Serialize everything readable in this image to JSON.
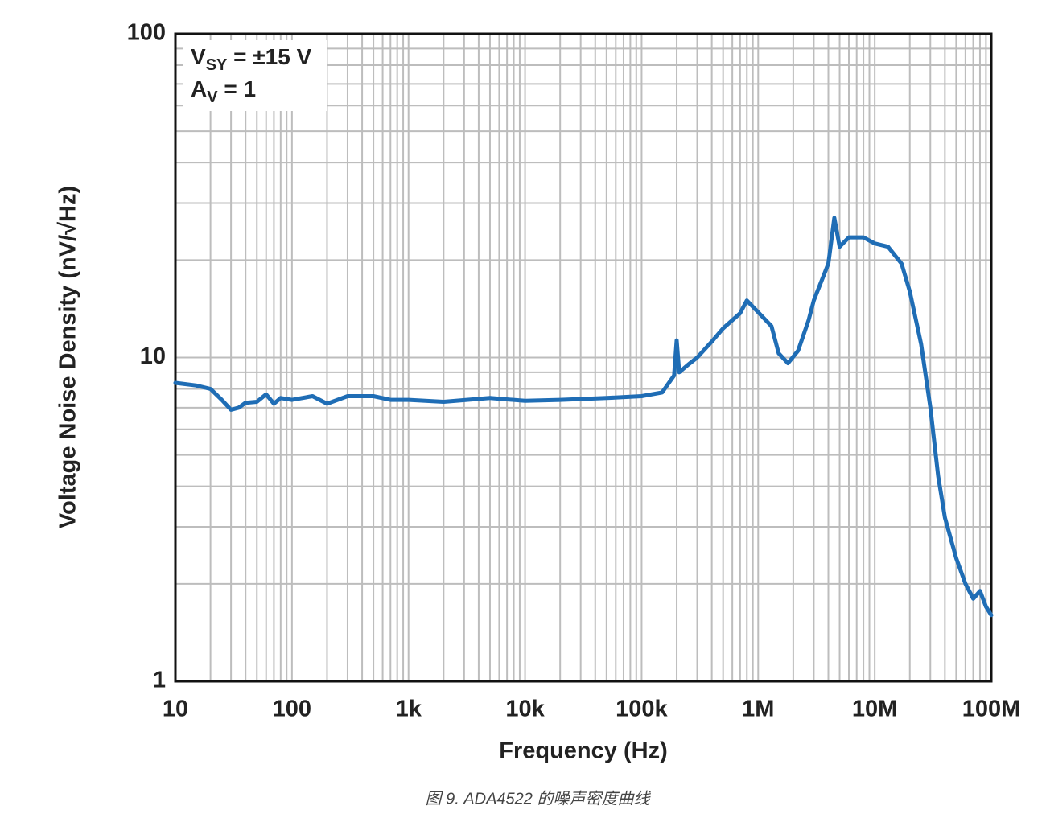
{
  "chart_data": {
    "type": "line",
    "xlabel": "Frequency (Hz)",
    "ylabel": "Voltage Noise Density (nV/√Hz)",
    "caption": "图 9. ADA4522 的噪声密度曲线",
    "annotations": [
      {
        "text": "V",
        "subscript": "SY",
        "suffix": " = ±15 V"
      },
      {
        "text": "A",
        "subscript": "V",
        "suffix": " = 1"
      }
    ],
    "xlog": true,
    "ylog": true,
    "grid": true,
    "minor_grid": true,
    "color": "#1f6db5",
    "xlim": [
      10,
      100000000
    ],
    "ylim": [
      1,
      100
    ],
    "xticks": [
      10,
      100,
      {
        "value": 1000,
        "label": "1k"
      },
      {
        "value": 10000,
        "label": "10k"
      },
      {
        "value": 100000,
        "label": "100k"
      },
      {
        "value": 1000000,
        "label": "1M"
      },
      {
        "value": 10000000,
        "label": "10M"
      },
      {
        "value": 100000000,
        "label": "100M"
      }
    ],
    "yticks": [
      1,
      10,
      100
    ],
    "x": [
      10,
      15,
      20,
      25,
      30,
      35,
      40,
      50,
      60,
      70,
      80,
      100,
      150,
      200,
      300,
      500,
      700,
      1000,
      2000,
      5000,
      10000,
      20000,
      50000,
      100000,
      150000,
      190000,
      200000,
      210000,
      250000,
      300000,
      400000,
      500000,
      700000,
      800000,
      1000000,
      1300000,
      1500000,
      1800000,
      2200000,
      2700000,
      3000000,
      4000000,
      4500000,
      5000000,
      6000000,
      8000000,
      10000000,
      13000000,
      17000000,
      20000000,
      25000000,
      30000000,
      35000000,
      40000000,
      50000000,
      60000000,
      70000000,
      80000000,
      90000000,
      100000000
    ],
    "values": [
      8.35,
      8.2,
      8.0,
      7.4,
      6.9,
      7.0,
      7.25,
      7.3,
      7.7,
      7.2,
      7.5,
      7.4,
      7.6,
      7.2,
      7.6,
      7.6,
      7.4,
      7.4,
      7.3,
      7.5,
      7.35,
      7.4,
      7.5,
      7.6,
      7.8,
      8.8,
      11.3,
      9.0,
      9.5,
      10.0,
      11.2,
      12.3,
      13.7,
      15,
      13.8,
      12.5,
      10.3,
      9.6,
      10.5,
      13,
      15,
      19.5,
      27,
      22,
      23.5,
      23.5,
      22.5,
      22,
      19.5,
      16,
      11,
      7,
      4.3,
      3.2,
      2.4,
      2.0,
      1.8,
      1.9,
      1.7,
      1.6
    ]
  }
}
